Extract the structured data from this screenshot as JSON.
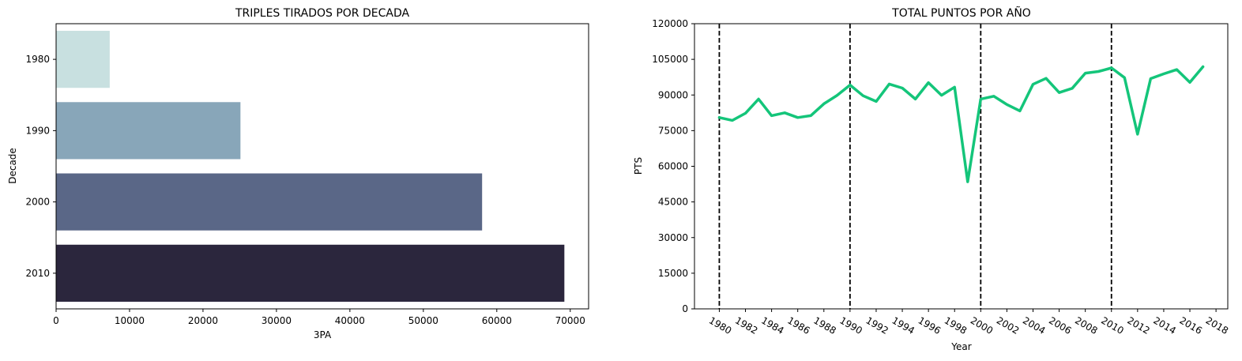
{
  "chart_data": [
    {
      "type": "bar",
      "orientation": "horizontal",
      "title": "TRIPLES TIRADOS POR DECADA",
      "xlabel": "3PA",
      "ylabel": "Decade",
      "categories": [
        "1980",
        "1990",
        "2000",
        "2010"
      ],
      "values": [
        7300,
        25100,
        58000,
        69200
      ],
      "colors": [
        "#c8e0e0",
        "#88a6b9",
        "#5a6787",
        "#2b263d"
      ],
      "xlim": [
        0,
        72500
      ],
      "xticks": [
        0,
        10000,
        20000,
        30000,
        40000,
        50000,
        60000,
        70000
      ],
      "grid": false
    },
    {
      "type": "line",
      "title": "TOTAL PUNTOS POR AÑO",
      "xlabel": "Year",
      "ylabel": "PTS",
      "x": [
        1980,
        1981,
        1982,
        1983,
        1984,
        1985,
        1986,
        1987,
        1988,
        1989,
        1990,
        1991,
        1992,
        1993,
        1994,
        1995,
        1996,
        1997,
        1998,
        1999,
        2000,
        2001,
        2002,
        2003,
        2004,
        2005,
        2006,
        2007,
        2008,
        2009,
        2010,
        2011,
        2012,
        2013,
        2014,
        2015,
        2016,
        2017
      ],
      "series": [
        {
          "values": [
            80500,
            79300,
            82300,
            88300,
            81300,
            82500,
            80500,
            81300,
            86300,
            89800,
            94200,
            89700,
            87300,
            94600,
            92900,
            88300,
            95200,
            89900,
            93300,
            53500,
            88300,
            89500,
            86000,
            83300,
            94500,
            97000,
            91000,
            92800,
            99200,
            99900,
            101400,
            97300,
            73500,
            96900,
            98900,
            100700,
            95300,
            101900
          ],
          "color": "#14c57a"
        }
      ],
      "vlines": [
        1980,
        1990,
        2000,
        2010
      ],
      "vline_color": "#000000",
      "xticks": [
        "1980",
        "1982",
        "1984",
        "1986",
        "1988",
        "1990",
        "1992",
        "1994",
        "1996",
        "1998",
        "2000",
        "2002",
        "2004",
        "2006",
        "2008",
        "2010",
        "2012",
        "2014",
        "2016",
        "2018"
      ],
      "xlim": [
        1978.1,
        2018.9
      ],
      "ylim": [
        0,
        120000
      ],
      "yticks": [
        "0",
        "15000",
        "30000",
        "45000",
        "60000",
        "75000",
        "90000",
        "105000",
        "120000"
      ],
      "grid": false
    }
  ]
}
